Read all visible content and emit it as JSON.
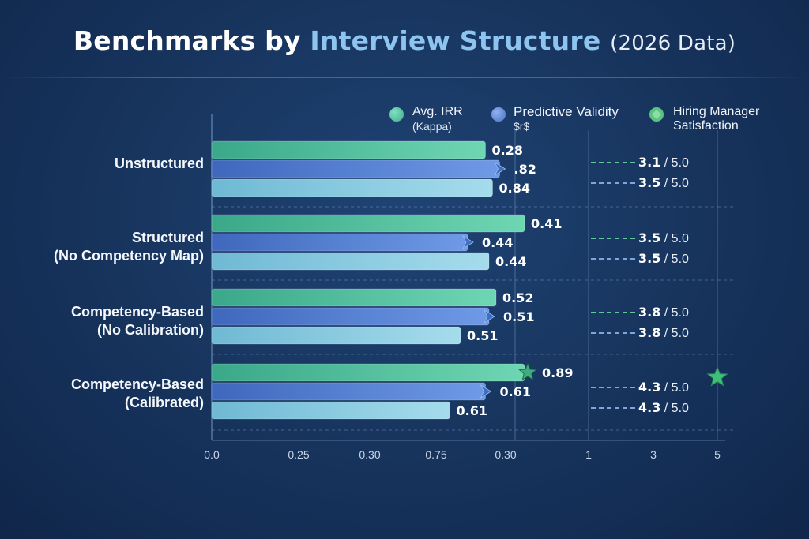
{
  "title": {
    "part1": "Benchmarks by",
    "part2": "Interview Structure",
    "part3": "(2026 Data)"
  },
  "legend": [
    {
      "name": "Avg. IRR",
      "sub": "(Kappa)",
      "color": "#4fc2a0"
    },
    {
      "name": "Predictive Validity",
      "sub": "$r$",
      "color": "#5b86d6"
    },
    {
      "name": "Hiring Manager",
      "sub": "Satisfaction",
      "color": "#58c47e"
    }
  ],
  "x_tick_labels": [
    "0.0",
    "0.25",
    "0.30",
    "0.75",
    "0.30",
    "1",
    "3",
    "5"
  ],
  "chart_data": {
    "type": "bar",
    "orientation": "horizontal",
    "title": "Benchmarks by Interview Structure (2026 Data)",
    "categories": [
      [
        "Unstructured"
      ],
      [
        "Structured",
        "(No Competency Map)"
      ],
      [
        "Competency-Based",
        "(No Calibration)"
      ],
      [
        "Competency-Based",
        "(Calibrated)"
      ]
    ],
    "series": [
      {
        "name": "Avg. IRR (Kappa)",
        "color": "#4fc2a0",
        "values": [
          0.28,
          0.41,
          0.52,
          0.89
        ],
        "labels": [
          "0.28",
          "0.41",
          "0.52",
          "0.89"
        ]
      },
      {
        "name": "Predictive Validity $r$",
        "color": "#5a86d4",
        "values": [
          0.82,
          0.44,
          0.51,
          0.61
        ],
        "labels": [
          ".82",
          "0.44",
          "0.51",
          "0.61"
        ]
      },
      {
        "name": "",
        "color": "#86cbe0",
        "values": [
          0.84,
          0.44,
          0.51,
          0.61
        ],
        "labels": [
          "0.84",
          "0.44",
          "0.51",
          "0.61"
        ]
      }
    ],
    "bar_lengths_scale": [
      0.77,
      0.81,
      0.79,
      0.88,
      0.72,
      0.78,
      0.8,
      0.78,
      0.7,
      0.88,
      0.77,
      0.67
    ],
    "satisfaction": {
      "name": "Hiring Manager Satisfaction",
      "scale_max": 5.0,
      "rows": [
        [
          {
            "value": 3.1,
            "text": "3.1",
            "suffix": "/ 5.0"
          },
          {
            "value": 3.5,
            "text": "3.5",
            "suffix": "/ 5.0"
          }
        ],
        [
          {
            "value": 3.5,
            "text": "3.5",
            "suffix": "/ 5.0"
          },
          {
            "value": 3.5,
            "text": "3.5",
            "suffix": "/ 5.0"
          }
        ],
        [
          {
            "value": 3.8,
            "text": "3.8",
            "suffix": "/ 5.0"
          },
          {
            "value": 3.8,
            "text": "3.8",
            "suffix": "/ 5.0"
          }
        ],
        [
          {
            "value": 4.3,
            "text": "4.3",
            "suffix": "/ 5.0"
          },
          {
            "value": 4.3,
            "text": "4.3",
            "suffix": "/ 5.0"
          }
        ]
      ],
      "highlight_row": 3
    },
    "highlight_category": 3,
    "grid": true
  }
}
